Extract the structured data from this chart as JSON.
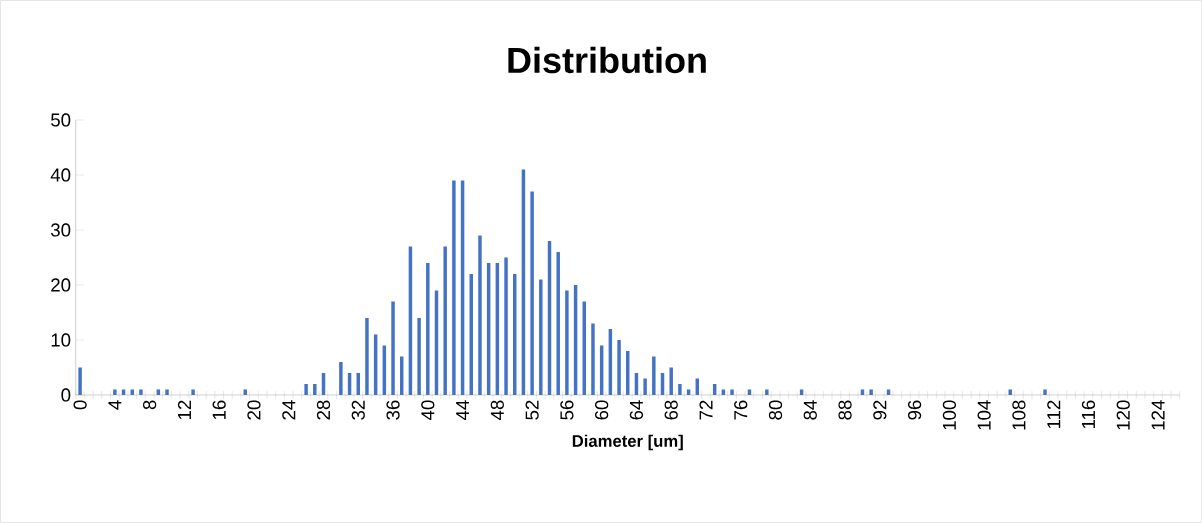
{
  "chart_data": {
    "type": "bar",
    "title": "Distribution",
    "xlabel": "Diameter [um]",
    "categories": [
      "0",
      null,
      null,
      null,
      "4",
      null,
      null,
      null,
      "8",
      null,
      null,
      null,
      "12",
      null,
      null,
      null,
      "16",
      null,
      null,
      null,
      "20",
      null,
      null,
      null,
      "24",
      null,
      null,
      null,
      "28",
      null,
      null,
      null,
      "32",
      null,
      null,
      null,
      "36",
      null,
      null,
      null,
      "40",
      null,
      null,
      null,
      "44",
      null,
      null,
      null,
      "48",
      null,
      null,
      null,
      "52",
      null,
      null,
      null,
      "56",
      null,
      null,
      null,
      "60",
      null,
      null,
      null,
      "64",
      null,
      null,
      null,
      "68",
      null,
      null,
      null,
      "72",
      null,
      null,
      null,
      "76",
      null,
      null,
      null,
      "80",
      null,
      null,
      null,
      "84",
      null,
      null,
      null,
      "88",
      null,
      null,
      null,
      "92",
      null,
      null,
      null,
      "96",
      null,
      null,
      null,
      "100",
      null,
      null,
      null,
      "104",
      null,
      null,
      null,
      "108",
      null,
      null,
      null,
      "112",
      null,
      null,
      null,
      "116",
      null,
      null,
      null,
      "120",
      null,
      null,
      null,
      "124",
      null,
      null
    ],
    "values": [
      5,
      0,
      0,
      0,
      1,
      1,
      1,
      1,
      0,
      1,
      1,
      0,
      0,
      1,
      0,
      0,
      0,
      0,
      0,
      1,
      0,
      0,
      0,
      0,
      0,
      0,
      2,
      2,
      4,
      0,
      6,
      4,
      4,
      14,
      11,
      9,
      17,
      7,
      27,
      14,
      24,
      19,
      27,
      39,
      39,
      22,
      29,
      24,
      24,
      25,
      22,
      41,
      37,
      21,
      28,
      26,
      19,
      20,
      17,
      13,
      9,
      12,
      10,
      8,
      4,
      3,
      7,
      4,
      5,
      2,
      1,
      3,
      0,
      2,
      1,
      1,
      0,
      1,
      0,
      1,
      0,
      0,
      0,
      1,
      0,
      0,
      0,
      0,
      0,
      0,
      1,
      1,
      0,
      1,
      0,
      0,
      0,
      0,
      0,
      0,
      0,
      0,
      0,
      0,
      0,
      0,
      0,
      1,
      0,
      0,
      0,
      1,
      0,
      0,
      0,
      0,
      0,
      0,
      0,
      0,
      0,
      0,
      0,
      0,
      0,
      0,
      0
    ],
    "color": "#4472c4",
    "ylim": [
      0,
      50
    ],
    "yticks": [
      0,
      10,
      20,
      30,
      40,
      50
    ]
  }
}
